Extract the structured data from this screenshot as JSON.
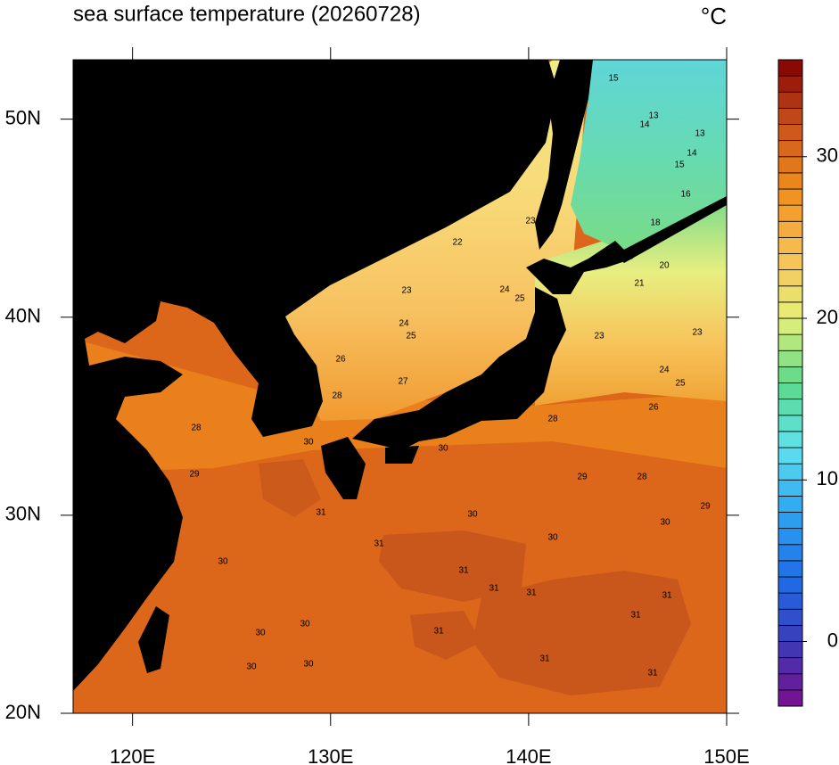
{
  "chart_data": {
    "type": "contour-map",
    "title": "sea surface temperature (20260728)",
    "unit": "°C",
    "xlim": [
      117,
      150
    ],
    "ylim": [
      20,
      53
    ],
    "xticks": [
      {
        "value": 120,
        "label": "120E"
      },
      {
        "value": 130,
        "label": "130E"
      },
      {
        "value": 140,
        "label": "140E"
      },
      {
        "value": 150,
        "label": "150E"
      }
    ],
    "yticks": [
      {
        "value": 20,
        "label": "20N"
      },
      {
        "value": 30,
        "label": "30N"
      },
      {
        "value": 40,
        "label": "40N"
      },
      {
        "value": 50,
        "label": "50N"
      }
    ],
    "colorbar": {
      "lim": [
        -4,
        36
      ],
      "interval": 1,
      "ticks": [
        0,
        10,
        20,
        30
      ],
      "colormap": [
        "#7a0f8c",
        "#3a3cb8",
        "#1f6ee8",
        "#2ea4f0",
        "#5fe2ee",
        "#5cd98a",
        "#e6f07a",
        "#f7bf55",
        "#f08d1c",
        "#c9511a",
        "#800000"
      ]
    },
    "contour_labels": [
      15,
      13,
      14,
      13,
      14,
      15,
      16,
      18,
      20,
      21,
      22,
      23,
      23,
      24,
      25,
      24,
      25,
      26,
      27,
      28,
      23,
      23,
      24,
      25,
      26,
      28,
      28,
      29,
      30,
      30,
      29,
      28,
      29,
      30,
      30,
      30,
      31,
      31,
      31,
      31,
      31,
      31,
      31,
      31,
      31,
      30,
      30,
      30,
      30,
      30,
      31
    ]
  }
}
